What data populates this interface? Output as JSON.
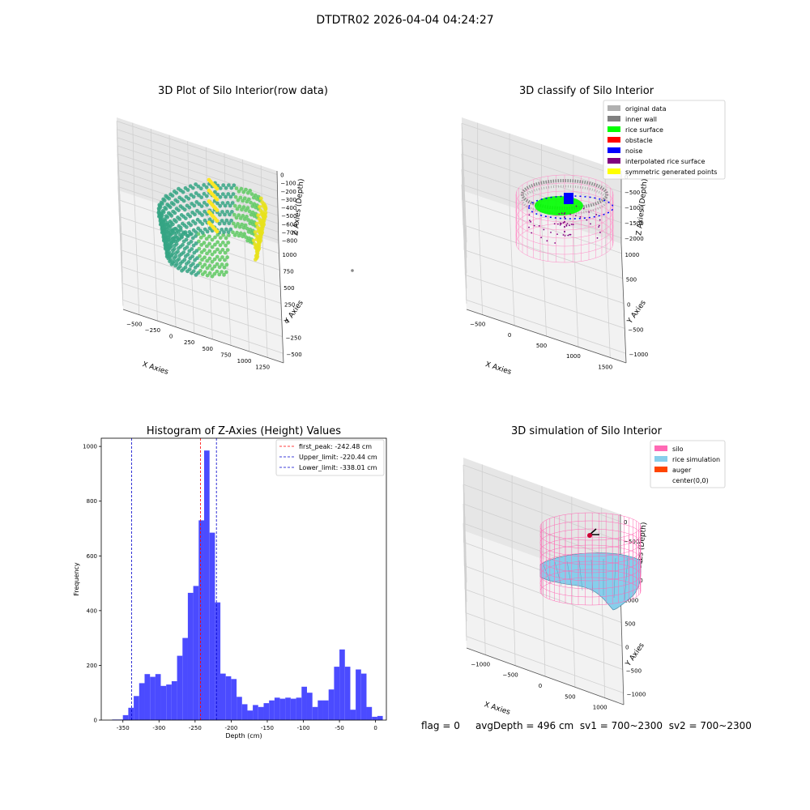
{
  "window": {
    "suptitle": "DTDTR02 2026-04-04 04:24:27"
  },
  "status_line": {
    "flag": "flag = 0",
    "avg_depth": "avgDepth = 496 cm",
    "sv1": "sv1 = 700~2300",
    "sv2": "sv2 = 700~2300"
  },
  "colors": {
    "histogram_bar": "#4b4bff",
    "first_peak_line": "#ff0000",
    "limit_lines": "#0000cc",
    "silo_wire": "#ff69b4",
    "rice_simulation": "#87ceeb",
    "auger": "#ff4500",
    "pane": "#f2f2f2",
    "viridis_low": "#2ca27f",
    "viridis_high": "#fde725"
  },
  "chart_data": [
    {
      "id": "raw",
      "type": "scatter3d",
      "title": "3D Plot of Silo Interior(row data)",
      "xlabel": "X Axies",
      "ylabel": "Y Axies",
      "zlabel": "Z Axies (Depth)",
      "x_ticks": [
        "−500",
        "−250",
        "0",
        "250",
        "500",
        "750",
        "1000",
        "1250"
      ],
      "y_ticks": [
        "−500",
        "−250",
        "0",
        "250",
        "500",
        "750",
        "1000"
      ],
      "z_ticks": [
        "0",
        "−100",
        "−200",
        "−300",
        "−400",
        "−500",
        "−600",
        "−700",
        "−800"
      ],
      "xlim": [
        -600,
        1400
      ],
      "ylim": [
        -600,
        1100
      ],
      "zlim": [
        -800,
        0
      ],
      "colormap": "viridis",
      "point_cloud": "ring of points with radius about 450, depth between −200 and −500, partially open toward +y"
    },
    {
      "id": "classify",
      "type": "scatter3d",
      "title": "3D classify of Silo Interior",
      "xlabel": "X Axies",
      "ylabel": "Y Axies",
      "zlabel": "Z Axies (Depth)",
      "x_ticks": [
        "−500",
        "0",
        "500",
        "1000",
        "1500"
      ],
      "y_ticks": [
        "−1000",
        "−500",
        "0",
        "500",
        "1000"
      ],
      "z_ticks": [
        "0",
        "−500",
        "−1000",
        "−1500",
        "−2000"
      ],
      "xlim": [
        -700,
        1700
      ],
      "ylim": [
        -1100,
        1100
      ],
      "zlim": [
        -2200,
        0
      ],
      "legend": [
        {
          "label": "original data",
          "color": "#b0b0b0"
        },
        {
          "label": "inner wall",
          "color": "#808080"
        },
        {
          "label": "rice surface",
          "color": "#00ff00"
        },
        {
          "label": "obstacle",
          "color": "#ff0000"
        },
        {
          "label": "noise",
          "color": "#0000ff"
        },
        {
          "label": "interpolated rice surface",
          "color": "#800080"
        },
        {
          "label": "symmetric generated points",
          "color": "#ffff00"
        }
      ],
      "legend_loc": "upper right"
    },
    {
      "id": "hist",
      "type": "bar",
      "title": "Histogram of Z-Axies (Height) Values",
      "xlabel": "Depth (cm)",
      "ylabel": "Frequency",
      "xlim": [
        -380,
        15
      ],
      "ylim": [
        0,
        1030
      ],
      "x_ticks": [
        -350,
        -300,
        -250,
        -200,
        -150,
        -100,
        -50,
        0
      ],
      "y_ticks": [
        0,
        200,
        400,
        600,
        800,
        1000
      ],
      "bin_start": -365,
      "bin_width": 7.5,
      "values": [
        2,
        2,
        18,
        45,
        88,
        135,
        168,
        158,
        168,
        125,
        130,
        142,
        235,
        300,
        465,
        490,
        730,
        985,
        685,
        430,
        170,
        160,
        150,
        85,
        58,
        35,
        55,
        48,
        62,
        72,
        82,
        78,
        82,
        78,
        82,
        122,
        100,
        48,
        72,
        72,
        112,
        195,
        258,
        195,
        38,
        185,
        170,
        48,
        12,
        15
      ],
      "vlines": [
        {
          "name": "first_peak: -242.48 cm",
          "x": -242.48,
          "color": "#ff0000"
        },
        {
          "name": "Upper_limit: -220.44 cm",
          "x": -220.44,
          "color": "#0000cc"
        },
        {
          "name": "Lower_limit: -338.01 cm",
          "x": -338.01,
          "color": "#0000cc"
        }
      ],
      "legend_loc": "upper right",
      "grid": false
    },
    {
      "id": "sim",
      "type": "surface3d",
      "title": "3D simulation of Silo Interior",
      "xlabel": "X Axies",
      "ylabel": "Y Axies",
      "zlabel": "Z Axies (Depth)",
      "x_ticks": [
        "−1000",
        "−500",
        "0",
        "500",
        "1000"
      ],
      "y_ticks": [
        "−1000",
        "−500",
        "0",
        "500",
        "1000"
      ],
      "z_ticks": [
        "0",
        "−500",
        "−1000",
        "−1500"
      ],
      "xlim": [
        -1200,
        1200
      ],
      "ylim": [
        -1200,
        1200
      ],
      "zlim": [
        -1800,
        200
      ],
      "legend": [
        {
          "label": "silo",
          "color": "#ff69b4"
        },
        {
          "label": "rice simulation",
          "color": "#87ceeb"
        },
        {
          "label": "auger",
          "color": "#ff4500"
        },
        {
          "label": "center(0,0)",
          "color": ""
        }
      ],
      "legend_loc": "upper right"
    }
  ]
}
